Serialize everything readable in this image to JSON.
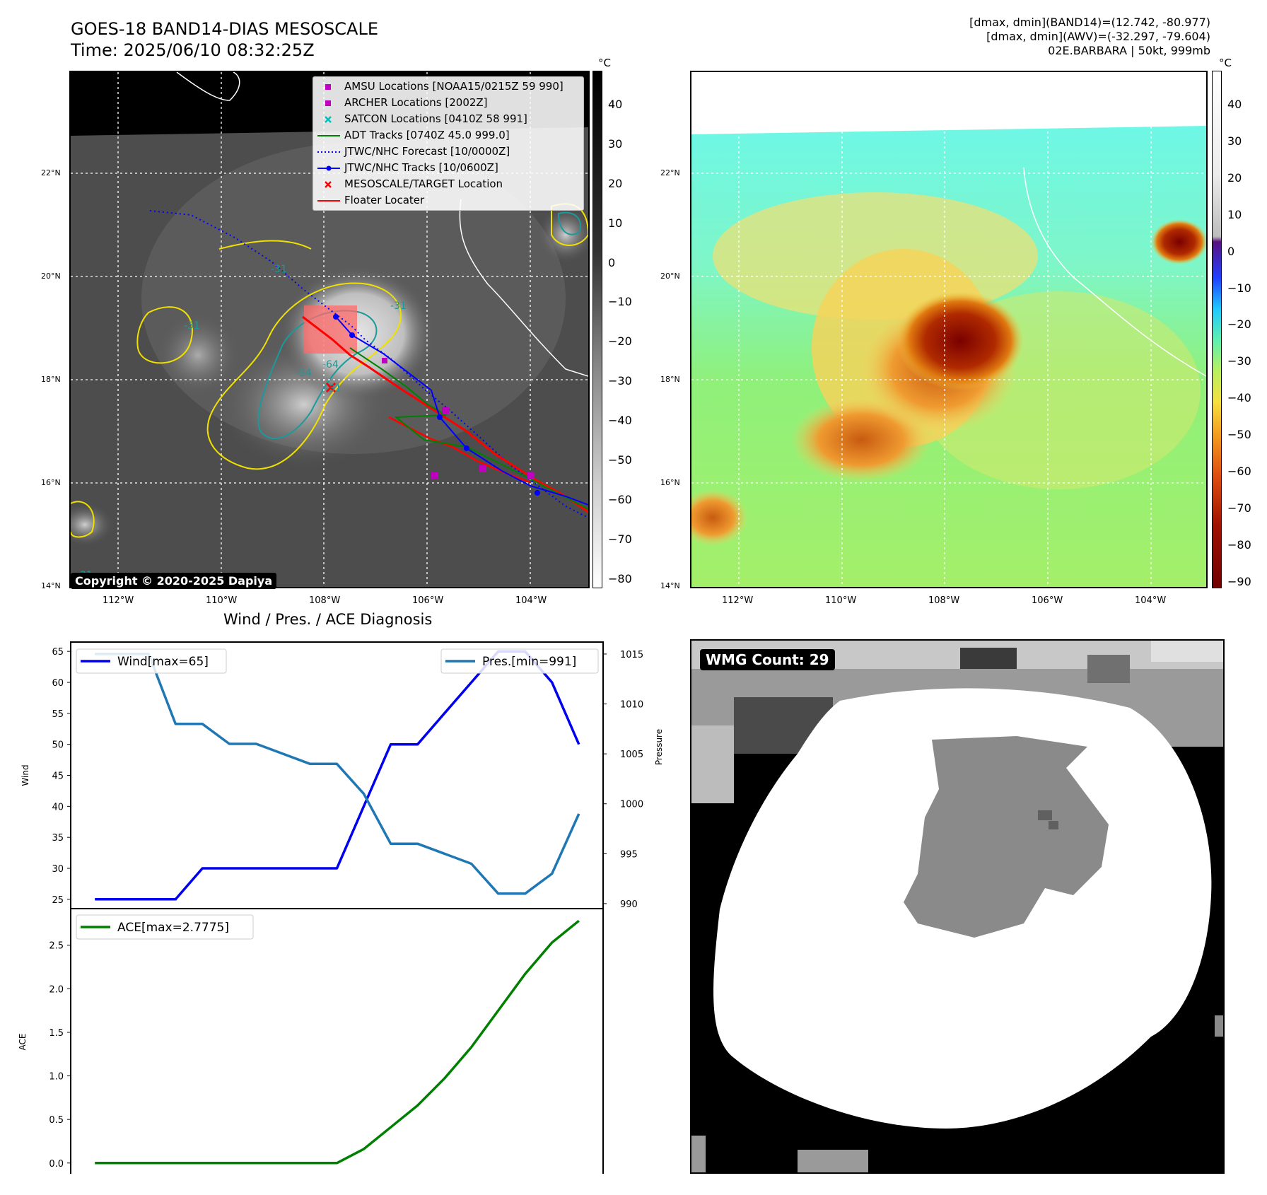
{
  "header": {
    "title_line1": "GOES-18 BAND14-DIAS MESOSCALE",
    "title_line2": "Time: 2025/06/10 08:32:25Z",
    "info_line1": "[dmax, dmin](BAND14)=(12.742, -80.977)",
    "info_line2": "[dmax, dmin](AWV)=(-32.297, -79.604)",
    "info_line3": "02E.BARBARA | 50kt, 999mb"
  },
  "maps": {
    "lat_labels": [
      "22°N",
      "20°N",
      "18°N",
      "16°N",
      "14°N"
    ],
    "lon_labels": [
      "112°W",
      "110°W",
      "108°W",
      "106°W",
      "104°W"
    ],
    "copyright": "Copyright © 2020-2025 Dapiya",
    "contour_labels": [
      "-31",
      "-31",
      "-64",
      "-54",
      "-31",
      "-31",
      "-31"
    ]
  },
  "left_colorbar": {
    "unit": "°C",
    "ticks": [
      "40",
      "30",
      "20",
      "10",
      "0",
      "−10",
      "−20",
      "−30",
      "−40",
      "−50",
      "−60",
      "−70",
      "−80"
    ]
  },
  "right_colorbar": {
    "unit": "°C",
    "ticks": [
      "40",
      "30",
      "20",
      "10",
      "0",
      "−10",
      "−20",
      "−30",
      "−40",
      "−50",
      "−60",
      "−70",
      "−80",
      "−90"
    ]
  },
  "legend": {
    "items": [
      {
        "label": "AMSU Locations [NOAA15/0215Z 59 990]",
        "color": "#c000c0",
        "marker": "square"
      },
      {
        "label": "ARCHER Locations [2002Z]",
        "color": "#c000c0",
        "marker": "square"
      },
      {
        "label": "SATCON Locations [0410Z 58 991]",
        "color": "#00bfbf",
        "marker": "x"
      },
      {
        "label": "ADT Tracks [0740Z 45.0 999.0]",
        "color": "#008000",
        "marker": "line"
      },
      {
        "label": "JTWC/NHC Forecast [10/0000Z]",
        "color": "#0000ff",
        "marker": "dotted"
      },
      {
        "label": "JTWC/NHC Tracks [10/0600Z]",
        "color": "#0000ff",
        "marker": "line-dot"
      },
      {
        "label": "MESOSCALE/TARGET Location",
        "color": "#ff0000",
        "marker": "x"
      },
      {
        "label": "Floater Locater",
        "color": "#ff0000",
        "marker": "line"
      }
    ]
  },
  "wmg": {
    "label": "WMG Count: 29"
  },
  "chart_data": [
    {
      "type": "line",
      "title": "Wind / Pres. / ACE Diagnosis",
      "x": [
        0,
        1,
        2,
        3,
        4,
        5,
        6,
        7,
        8,
        9,
        10,
        11,
        12,
        13,
        14,
        15,
        16,
        17,
        18
      ],
      "y_left_label": "Wind",
      "y_left_ticks": [
        25,
        30,
        35,
        40,
        45,
        50,
        55,
        60,
        65
      ],
      "y_left_lim": [
        23.5,
        66.5
      ],
      "y_right_label": "Pressure",
      "y_right_ticks": [
        990,
        995,
        1000,
        1005,
        1010,
        1015
      ],
      "y_right_lim": [
        989.5,
        1016.2
      ],
      "series": [
        {
          "name": "Wind[max=65]",
          "axis": "left",
          "color": "#0000ee",
          "values": [
            25,
            25,
            25,
            25,
            30,
            30,
            30,
            30,
            30,
            30,
            40,
            50,
            50,
            55,
            60,
            65,
            65,
            60,
            50
          ]
        },
        {
          "name": "Pres.[min=991]",
          "axis": "right",
          "color": "#1f77b4",
          "values": [
            1015,
            1015,
            1015,
            1008,
            1008,
            1006,
            1006,
            1005,
            1004,
            1004,
            1001,
            996,
            996,
            995,
            994,
            991,
            991,
            993,
            999
          ]
        }
      ]
    },
    {
      "type": "line",
      "x": [
        0,
        1,
        2,
        3,
        4,
        5,
        6,
        7,
        8,
        9,
        10,
        11,
        12,
        13,
        14,
        15,
        16,
        17,
        18
      ],
      "y_label": "ACE",
      "y_ticks": [
        0.0,
        0.5,
        1.0,
        1.5,
        2.0,
        2.5
      ],
      "y_tick_labels": [
        "0.0",
        "0.5",
        "1.0",
        "1.5",
        "2.0",
        "2.5"
      ],
      "y_lim": [
        -0.14,
        2.92
      ],
      "series": [
        {
          "name": "ACE[max=2.7775]",
          "color": "#008000",
          "values": [
            0,
            0,
            0,
            0,
            0,
            0,
            0,
            0,
            0,
            0,
            0.16,
            0.41,
            0.66,
            0.97,
            1.33,
            1.75,
            2.17,
            2.53,
            2.78
          ]
        }
      ]
    }
  ]
}
